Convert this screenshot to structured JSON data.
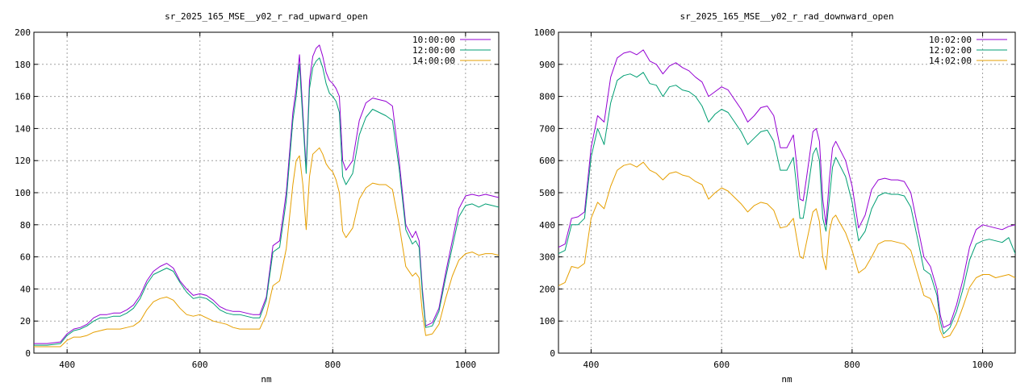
{
  "chart_data": [
    {
      "type": "line",
      "title": "sr_2025_165_MSE__y02_r_rad_upward_open",
      "xlabel": "nm",
      "ylabel": "",
      "xlim": [
        350,
        1050
      ],
      "ylim": [
        0,
        200
      ],
      "xticks": [
        400,
        600,
        800,
        1000
      ],
      "yticks": [
        0,
        20,
        40,
        60,
        80,
        100,
        120,
        140,
        160,
        180,
        200
      ],
      "grid": true,
      "legend": "top-right",
      "series": [
        {
          "name": "10:00:00",
          "color": "#9400d3",
          "x": [
            350,
            370,
            390,
            400,
            410,
            420,
            430,
            440,
            450,
            460,
            470,
            480,
            490,
            500,
            510,
            520,
            530,
            540,
            550,
            560,
            570,
            580,
            590,
            600,
            610,
            620,
            630,
            640,
            650,
            660,
            670,
            680,
            690,
            700,
            710,
            720,
            730,
            740,
            745,
            750,
            755,
            760,
            765,
            770,
            775,
            780,
            785,
            790,
            795,
            800,
            805,
            810,
            815,
            820,
            830,
            840,
            850,
            860,
            870,
            880,
            890,
            900,
            910,
            920,
            925,
            930,
            935,
            940,
            950,
            960,
            970,
            980,
            990,
            1000,
            1010,
            1020,
            1030,
            1040,
            1050
          ],
          "y": [
            6,
            6,
            7,
            12,
            15,
            16,
            18,
            22,
            24,
            24,
            25,
            25,
            27,
            30,
            36,
            45,
            51,
            54,
            56,
            53,
            45,
            40,
            36,
            37,
            36,
            33,
            29,
            27,
            26,
            26,
            25,
            24,
            24,
            35,
            67,
            70,
            100,
            150,
            165,
            186,
            150,
            115,
            170,
            185,
            190,
            192,
            185,
            175,
            170,
            168,
            165,
            160,
            120,
            114,
            120,
            145,
            156,
            159,
            158,
            157,
            154,
            120,
            80,
            72,
            76,
            70,
            40,
            17,
            19,
            28,
            50,
            70,
            90,
            98,
            99,
            98,
            99,
            98,
            97
          ]
        },
        {
          "name": "12:00:00",
          "color": "#009e73",
          "x": [
            350,
            370,
            390,
            400,
            410,
            420,
            430,
            440,
            450,
            460,
            470,
            480,
            490,
            500,
            510,
            520,
            530,
            540,
            550,
            560,
            570,
            580,
            590,
            600,
            610,
            620,
            630,
            640,
            650,
            660,
            670,
            680,
            690,
            700,
            710,
            720,
            730,
            740,
            745,
            750,
            755,
            760,
            765,
            770,
            775,
            780,
            785,
            790,
            795,
            800,
            805,
            810,
            815,
            820,
            830,
            840,
            850,
            860,
            870,
            880,
            890,
            900,
            910,
            920,
            925,
            930,
            935,
            940,
            950,
            960,
            970,
            980,
            990,
            1000,
            1010,
            1020,
            1030,
            1040,
            1050
          ],
          "y": [
            5,
            5,
            6,
            11,
            14,
            15,
            17,
            20,
            22,
            22,
            23,
            23,
            25,
            28,
            34,
            43,
            49,
            51,
            53,
            51,
            44,
            38,
            34,
            35,
            34,
            31,
            27,
            25,
            24,
            24,
            23,
            22,
            22,
            33,
            63,
            66,
            95,
            145,
            160,
            180,
            145,
            112,
            165,
            178,
            182,
            184,
            178,
            168,
            162,
            160,
            157,
            150,
            110,
            105,
            112,
            136,
            147,
            152,
            150,
            148,
            145,
            115,
            77,
            68,
            70,
            66,
            37,
            16,
            17,
            26,
            47,
            66,
            85,
            92,
            93,
            91,
            93,
            92,
            91
          ]
        },
        {
          "name": "14:00:00",
          "color": "#e69f00",
          "x": [
            350,
            370,
            390,
            400,
            410,
            420,
            430,
            440,
            450,
            460,
            470,
            480,
            490,
            500,
            510,
            520,
            530,
            540,
            550,
            560,
            570,
            580,
            590,
            600,
            610,
            620,
            630,
            640,
            650,
            660,
            670,
            680,
            690,
            700,
            710,
            720,
            730,
            740,
            745,
            750,
            755,
            760,
            765,
            770,
            775,
            780,
            785,
            790,
            795,
            800,
            805,
            810,
            815,
            820,
            830,
            840,
            850,
            860,
            870,
            880,
            890,
            900,
            910,
            920,
            925,
            930,
            935,
            940,
            950,
            960,
            970,
            980,
            990,
            1000,
            1010,
            1020,
            1030,
            1040,
            1050
          ],
          "y": [
            4,
            4,
            4,
            8,
            10,
            10,
            11,
            13,
            14,
            15,
            15,
            15,
            16,
            17,
            20,
            27,
            32,
            34,
            35,
            33,
            28,
            24,
            23,
            24,
            22,
            20,
            19,
            18,
            16,
            15,
            15,
            15,
            15,
            24,
            42,
            45,
            65,
            105,
            120,
            123,
            105,
            77,
            110,
            124,
            126,
            128,
            124,
            118,
            115,
            113,
            108,
            100,
            76,
            72,
            78,
            96,
            103,
            106,
            105,
            105,
            102,
            80,
            54,
            48,
            50,
            47,
            25,
            11,
            12,
            18,
            34,
            48,
            58,
            62,
            63,
            61,
            62,
            62,
            61
          ]
        }
      ]
    },
    {
      "type": "line",
      "title": "sr_2025_165_MSE__y02_r_rad_downward_open",
      "xlabel": "nm",
      "ylabel": "",
      "xlim": [
        350,
        1050
      ],
      "ylim": [
        0,
        1000
      ],
      "xticks": [
        400,
        600,
        800,
        1000
      ],
      "yticks": [
        0,
        100,
        200,
        300,
        400,
        500,
        600,
        700,
        800,
        900,
        1000
      ],
      "grid": true,
      "legend": "top-right",
      "series": [
        {
          "name": "10:02:00",
          "color": "#9400d3",
          "x": [
            350,
            360,
            370,
            380,
            390,
            400,
            410,
            420,
            430,
            440,
            450,
            460,
            470,
            480,
            490,
            500,
            510,
            520,
            530,
            540,
            550,
            560,
            570,
            580,
            590,
            600,
            610,
            620,
            630,
            640,
            650,
            660,
            670,
            680,
            690,
            700,
            710,
            715,
            720,
            725,
            730,
            740,
            745,
            750,
            755,
            760,
            765,
            770,
            775,
            780,
            790,
            800,
            810,
            820,
            830,
            840,
            850,
            860,
            870,
            880,
            890,
            900,
            910,
            920,
            930,
            935,
            940,
            950,
            960,
            970,
            980,
            990,
            1000,
            1010,
            1020,
            1030,
            1040,
            1050
          ],
          "y": [
            330,
            340,
            420,
            425,
            440,
            640,
            740,
            720,
            860,
            920,
            935,
            940,
            930,
            945,
            910,
            900,
            870,
            895,
            905,
            890,
            880,
            860,
            845,
            800,
            815,
            830,
            820,
            790,
            760,
            720,
            740,
            765,
            770,
            740,
            640,
            640,
            680,
            590,
            480,
            475,
            545,
            690,
            700,
            660,
            480,
            400,
            540,
            640,
            660,
            640,
            600,
            520,
            390,
            430,
            510,
            540,
            545,
            540,
            540,
            535,
            500,
            400,
            300,
            270,
            200,
            120,
            80,
            90,
            150,
            230,
            330,
            385,
            400,
            395,
            390,
            385,
            395,
            400
          ]
        },
        {
          "name": "12:02:00",
          "color": "#009e73",
          "x": [
            350,
            360,
            370,
            380,
            390,
            400,
            410,
            420,
            430,
            440,
            450,
            460,
            470,
            480,
            490,
            500,
            510,
            520,
            530,
            540,
            550,
            560,
            570,
            580,
            590,
            600,
            610,
            620,
            630,
            640,
            650,
            660,
            670,
            680,
            690,
            700,
            710,
            715,
            720,
            725,
            730,
            740,
            745,
            750,
            755,
            760,
            765,
            770,
            775,
            780,
            790,
            800,
            810,
            820,
            830,
            840,
            850,
            860,
            870,
            880,
            890,
            900,
            910,
            920,
            930,
            935,
            940,
            950,
            960,
            970,
            980,
            990,
            1000,
            1010,
            1020,
            1030,
            1040,
            1050
          ],
          "y": [
            310,
            320,
            400,
            400,
            420,
            610,
            700,
            650,
            780,
            850,
            865,
            870,
            860,
            875,
            840,
            835,
            800,
            830,
            835,
            820,
            815,
            800,
            770,
            720,
            745,
            760,
            750,
            720,
            690,
            650,
            670,
            690,
            695,
            660,
            570,
            570,
            610,
            520,
            420,
            420,
            480,
            620,
            640,
            600,
            420,
            380,
            480,
            580,
            610,
            590,
            550,
            470,
            350,
            380,
            450,
            490,
            500,
            495,
            495,
            490,
            455,
            360,
            260,
            245,
            180,
            100,
            60,
            80,
            130,
            200,
            290,
            340,
            350,
            355,
            350,
            345,
            360,
            310
          ]
        },
        {
          "name": "14:02:00",
          "color": "#e69f00",
          "x": [
            350,
            360,
            370,
            380,
            390,
            400,
            410,
            420,
            430,
            440,
            450,
            460,
            470,
            480,
            490,
            500,
            510,
            520,
            530,
            540,
            550,
            560,
            570,
            580,
            590,
            600,
            610,
            620,
            630,
            640,
            650,
            660,
            670,
            680,
            690,
            700,
            710,
            715,
            720,
            725,
            730,
            740,
            745,
            750,
            755,
            760,
            765,
            770,
            775,
            780,
            790,
            800,
            810,
            820,
            830,
            840,
            850,
            860,
            870,
            880,
            890,
            900,
            910,
            920,
            930,
            935,
            940,
            950,
            960,
            970,
            980,
            990,
            1000,
            1010,
            1020,
            1030,
            1040,
            1050
          ],
          "y": [
            210,
            220,
            270,
            265,
            280,
            420,
            470,
            450,
            520,
            570,
            585,
            590,
            580,
            595,
            570,
            560,
            540,
            560,
            565,
            555,
            550,
            535,
            525,
            480,
            500,
            515,
            505,
            485,
            465,
            440,
            460,
            470,
            465,
            445,
            390,
            395,
            420,
            360,
            300,
            295,
            345,
            440,
            450,
            410,
            300,
            260,
            380,
            420,
            430,
            410,
            375,
            320,
            250,
            265,
            300,
            340,
            350,
            350,
            345,
            340,
            320,
            250,
            180,
            170,
            120,
            70,
            48,
            55,
            90,
            145,
            205,
            235,
            245,
            245,
            235,
            240,
            245,
            235
          ]
        }
      ]
    }
  ]
}
